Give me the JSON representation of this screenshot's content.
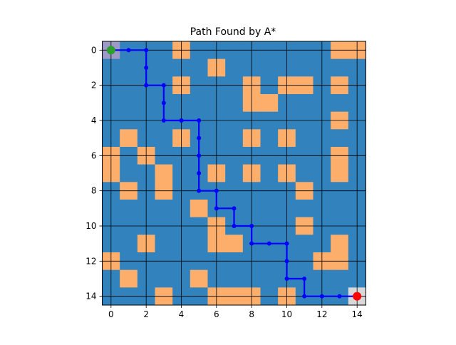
{
  "chart_data": {
    "type": "heatmap",
    "title": "Path Found by A*",
    "xlabel": "",
    "ylabel": "",
    "grid_size": 15,
    "xlim": [
      -0.5,
      14.5
    ],
    "ylim": [
      14.5,
      -0.5
    ],
    "x_ticks": [
      "0",
      "2",
      "4",
      "6",
      "8",
      "10",
      "12",
      "14"
    ],
    "y_ticks": [
      "0",
      "2",
      "4",
      "6",
      "8",
      "10",
      "12",
      "14"
    ],
    "grid": true,
    "colors": {
      "free": "#3182bd",
      "obstacle": "#fdae6b",
      "start_cell": "#9e9ac8",
      "goal_cell": "#d9d9d9",
      "path": "#0000ff",
      "start_marker": "#2ca02c",
      "goal_marker": "#ff0000"
    },
    "grid_values": [
      [
        2,
        0,
        0,
        0,
        1,
        0,
        0,
        0,
        0,
        0,
        0,
        0,
        0,
        1,
        1
      ],
      [
        0,
        0,
        0,
        0,
        0,
        0,
        1,
        0,
        0,
        0,
        0,
        0,
        0,
        0,
        0
      ],
      [
        0,
        0,
        0,
        0,
        1,
        0,
        0,
        0,
        1,
        0,
        1,
        1,
        0,
        1,
        0
      ],
      [
        0,
        0,
        0,
        0,
        0,
        0,
        0,
        0,
        1,
        1,
        0,
        0,
        0,
        0,
        0
      ],
      [
        0,
        0,
        0,
        0,
        0,
        0,
        0,
        0,
        0,
        0,
        0,
        0,
        0,
        1,
        0
      ],
      [
        0,
        1,
        0,
        0,
        1,
        0,
        0,
        0,
        1,
        0,
        1,
        0,
        0,
        0,
        0
      ],
      [
        1,
        0,
        1,
        0,
        0,
        0,
        0,
        0,
        0,
        0,
        0,
        0,
        0,
        1,
        0
      ],
      [
        1,
        0,
        0,
        1,
        0,
        0,
        1,
        0,
        1,
        0,
        1,
        0,
        0,
        1,
        0
      ],
      [
        0,
        1,
        0,
        1,
        0,
        0,
        0,
        0,
        0,
        0,
        0,
        1,
        0,
        0,
        0
      ],
      [
        0,
        0,
        0,
        0,
        0,
        1,
        0,
        0,
        0,
        0,
        0,
        0,
        0,
        0,
        0
      ],
      [
        0,
        0,
        0,
        0,
        0,
        0,
        1,
        0,
        0,
        0,
        0,
        1,
        0,
        0,
        0
      ],
      [
        0,
        0,
        1,
        0,
        0,
        0,
        1,
        1,
        0,
        0,
        0,
        0,
        0,
        1,
        0
      ],
      [
        1,
        0,
        0,
        0,
        0,
        0,
        0,
        0,
        0,
        0,
        0,
        0,
        1,
        1,
        0
      ],
      [
        0,
        1,
        0,
        0,
        0,
        1,
        0,
        0,
        0,
        0,
        0,
        0,
        0,
        0,
        0
      ],
      [
        0,
        0,
        0,
        1,
        0,
        0,
        1,
        1,
        1,
        0,
        1,
        0,
        0,
        0,
        3
      ]
    ],
    "path": [
      [
        0,
        0
      ],
      [
        0,
        1
      ],
      [
        0,
        2
      ],
      [
        1,
        2
      ],
      [
        2,
        2
      ],
      [
        2,
        3
      ],
      [
        3,
        3
      ],
      [
        4,
        3
      ],
      [
        4,
        4
      ],
      [
        4,
        5
      ],
      [
        5,
        5
      ],
      [
        6,
        5
      ],
      [
        7,
        5
      ],
      [
        8,
        5
      ],
      [
        8,
        6
      ],
      [
        9,
        6
      ],
      [
        9,
        7
      ],
      [
        10,
        7
      ],
      [
        10,
        8
      ],
      [
        11,
        8
      ],
      [
        11,
        9
      ],
      [
        11,
        10
      ],
      [
        12,
        10
      ],
      [
        13,
        10
      ],
      [
        13,
        11
      ],
      [
        14,
        11
      ],
      [
        14,
        12
      ],
      [
        14,
        13
      ],
      [
        14,
        14
      ]
    ],
    "start": [
      0,
      0
    ],
    "goal": [
      14,
      14
    ]
  }
}
